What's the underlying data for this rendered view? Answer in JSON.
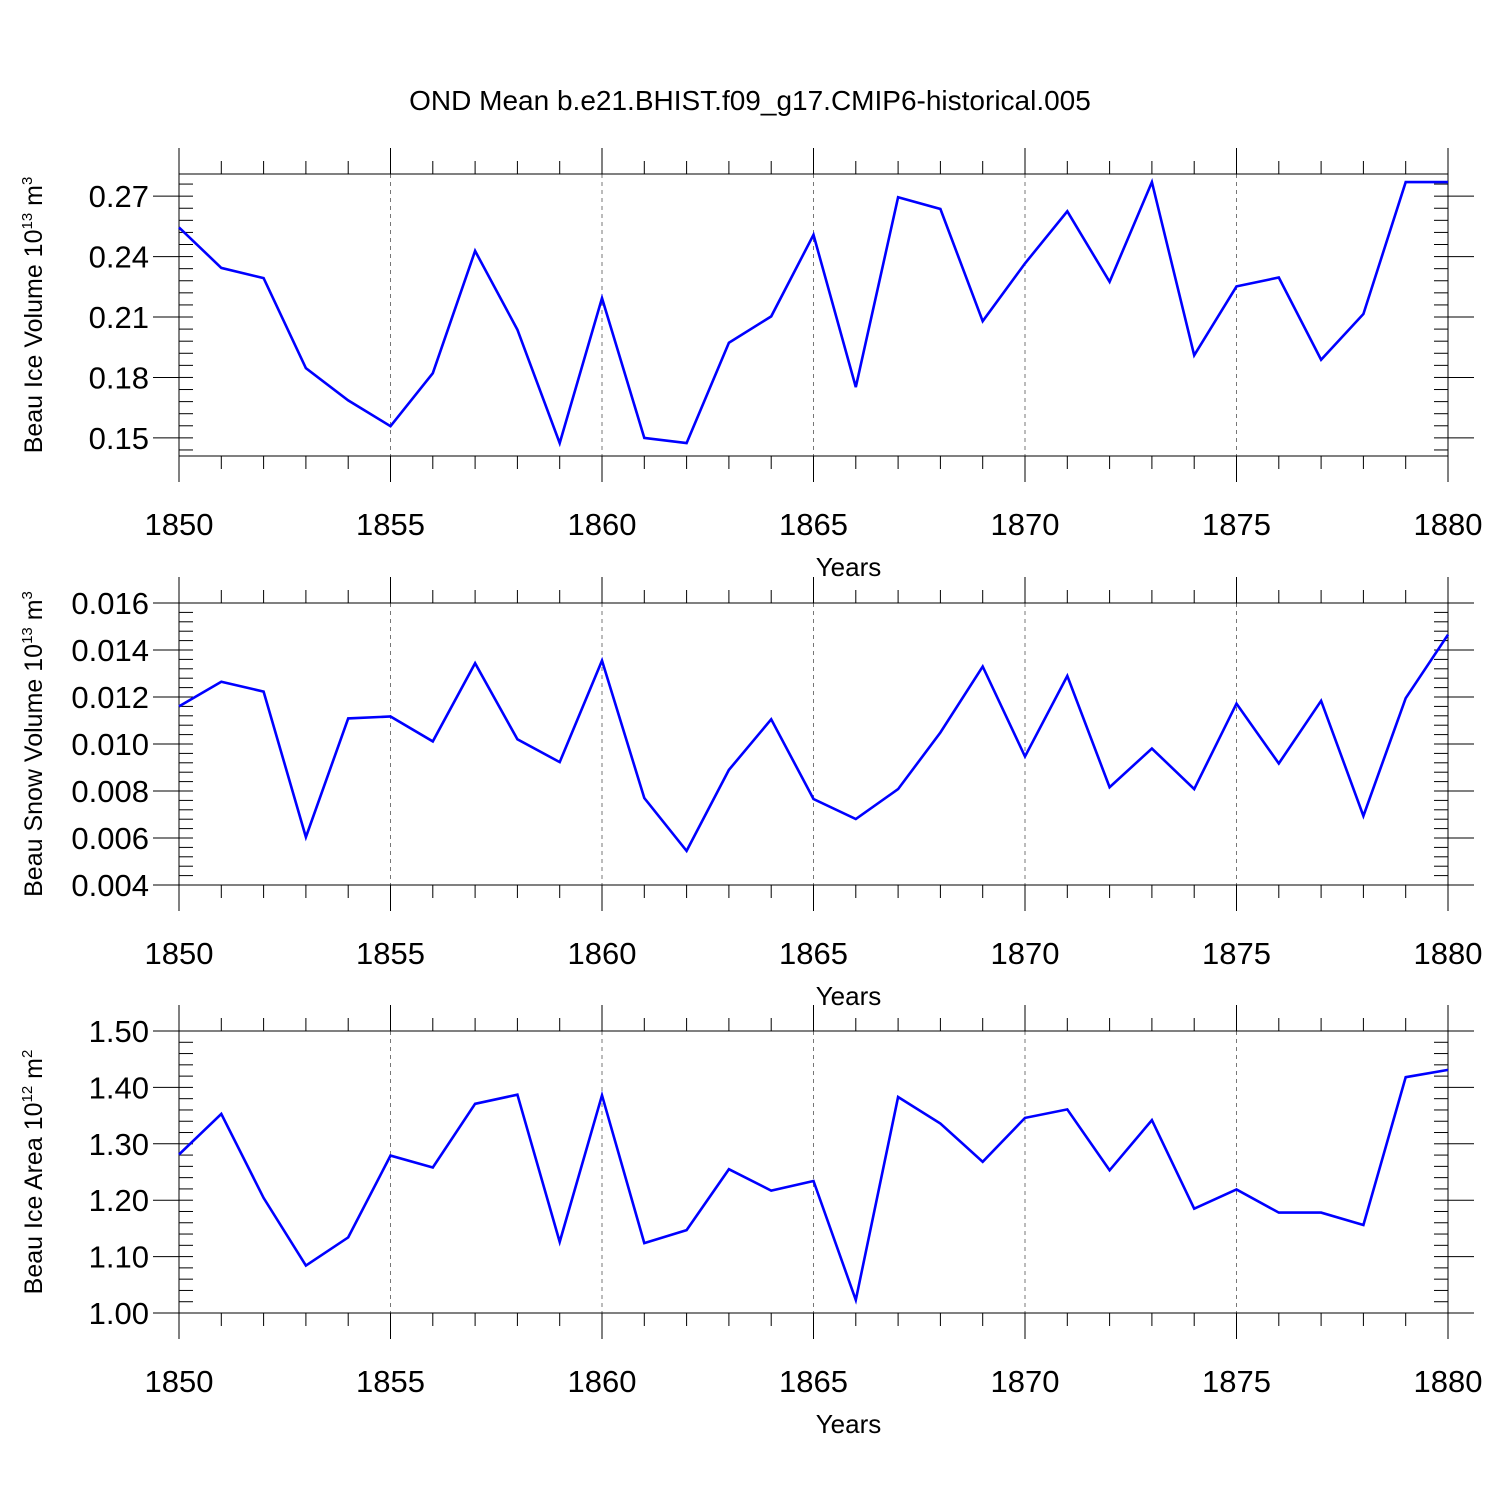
{
  "figure_title": "OND Mean b.e21.BHIST.f09_g17.CMIP6-historical.005",
  "line_color": "#0000ff",
  "chart_data": [
    {
      "type": "line",
      "title": "OND Mean b.e21.BHIST.f09_g17.CMIP6-historical.005",
      "ylabel": {
        "main": "Beau Ice Volume 10",
        "sup1": "13",
        "mid": " m",
        "sup2": "3"
      },
      "xlabel": "Years",
      "xlim": [
        1850,
        1880
      ],
      "ylim": [
        0.141,
        0.281
      ],
      "xticks": [
        1850,
        1855,
        1860,
        1865,
        1870,
        1875,
        1880
      ],
      "xtick_labels": [
        "1850",
        "1855",
        "1860",
        "1865",
        "1870",
        "1875",
        "1880"
      ],
      "yticks": [
        0.15,
        0.18,
        0.21,
        0.24,
        0.27
      ],
      "ytick_labels": [
        "0.15",
        "0.18",
        "0.21",
        "0.24",
        "0.27"
      ],
      "yminor_step": 0.006,
      "x": [
        1850,
        1851,
        1852,
        1853,
        1854,
        1855,
        1856,
        1857,
        1858,
        1859,
        1860,
        1861,
        1862,
        1863,
        1864,
        1865,
        1866,
        1867,
        1868,
        1869,
        1870,
        1871,
        1872,
        1873,
        1874,
        1875,
        1876,
        1877,
        1878,
        1879,
        1880
      ],
      "series": [
        {
          "name": "Beau Ice Volume",
          "values": [
            0.2545,
            0.2344,
            0.2293,
            0.1846,
            0.1686,
            0.1558,
            0.1821,
            0.2428,
            0.2037,
            0.1474,
            0.2194,
            0.15,
            0.1474,
            0.1972,
            0.2103,
            0.2508,
            0.1752,
            0.2695,
            0.2636,
            0.2079,
            0.2366,
            0.2625,
            0.2275,
            0.277,
            0.191,
            0.2252,
            0.2296,
            0.1888,
            0.2115,
            0.277,
            0.277
          ]
        }
      ]
    },
    {
      "type": "line",
      "ylabel": {
        "main": "Beau Snow Volume 10",
        "sup1": "13",
        "mid": " m",
        "sup2": "3"
      },
      "xlabel": "Years",
      "xlim": [
        1850,
        1880
      ],
      "ylim": [
        0.004,
        0.016
      ],
      "xticks": [
        1850,
        1855,
        1860,
        1865,
        1870,
        1875,
        1880
      ],
      "xtick_labels": [
        "1850",
        "1855",
        "1860",
        "1865",
        "1870",
        "1875",
        "1880"
      ],
      "yticks": [
        0.004,
        0.006,
        0.008,
        0.01,
        0.012,
        0.014,
        0.016
      ],
      "ytick_labels": [
        "0.004",
        "0.006",
        "0.008",
        "0.010",
        "0.012",
        "0.014",
        "0.016"
      ],
      "yminor_step": 0.0004,
      "x": [
        1850,
        1851,
        1852,
        1853,
        1854,
        1855,
        1856,
        1857,
        1858,
        1859,
        1860,
        1861,
        1862,
        1863,
        1864,
        1865,
        1866,
        1867,
        1868,
        1869,
        1870,
        1871,
        1872,
        1873,
        1874,
        1875,
        1876,
        1877,
        1878,
        1879,
        1880
      ],
      "series": [
        {
          "name": "Beau Snow Volume",
          "values": [
            0.0116,
            0.01265,
            0.01223,
            0.00604,
            0.01109,
            0.01117,
            0.01011,
            0.01344,
            0.0102,
            0.00923,
            0.01355,
            0.0077,
            0.00545,
            0.0089,
            0.01105,
            0.00766,
            0.00681,
            0.00808,
            0.01049,
            0.0133,
            0.00947,
            0.0129,
            0.00816,
            0.00981,
            0.00808,
            0.01172,
            0.00917,
            0.01184,
            0.00694,
            0.01195,
            0.01465
          ]
        }
      ]
    },
    {
      "type": "line",
      "ylabel": {
        "main": "Beau Ice Area 10",
        "sup1": "12",
        "mid": " m",
        "sup2": "2"
      },
      "xlabel": "Years",
      "xlim": [
        1850,
        1880
      ],
      "ylim": [
        1.0,
        1.5
      ],
      "xticks": [
        1850,
        1855,
        1860,
        1865,
        1870,
        1875,
        1880
      ],
      "xtick_labels": [
        "1850",
        "1855",
        "1860",
        "1865",
        "1870",
        "1875",
        "1880"
      ],
      "yticks": [
        1.0,
        1.1,
        1.2,
        1.3,
        1.4,
        1.5
      ],
      "ytick_labels": [
        "1.00",
        "1.10",
        "1.20",
        "1.30",
        "1.40",
        "1.50"
      ],
      "yminor_step": 0.02,
      "x": [
        1850,
        1851,
        1852,
        1853,
        1854,
        1855,
        1856,
        1857,
        1858,
        1859,
        1860,
        1861,
        1862,
        1863,
        1864,
        1865,
        1866,
        1867,
        1868,
        1869,
        1870,
        1871,
        1872,
        1873,
        1874,
        1875,
        1876,
        1877,
        1878,
        1879,
        1880
      ],
      "series": [
        {
          "name": "Beau Ice Area",
          "values": [
            1.281,
            1.353,
            1.204,
            1.084,
            1.134,
            1.279,
            1.258,
            1.371,
            1.387,
            1.126,
            1.386,
            1.124,
            1.147,
            1.255,
            1.217,
            1.234,
            1.023,
            1.383,
            1.336,
            1.268,
            1.346,
            1.361,
            1.253,
            1.342,
            1.185,
            1.219,
            1.178,
            1.178,
            1.156,
            1.418,
            1.431
          ]
        }
      ]
    }
  ]
}
